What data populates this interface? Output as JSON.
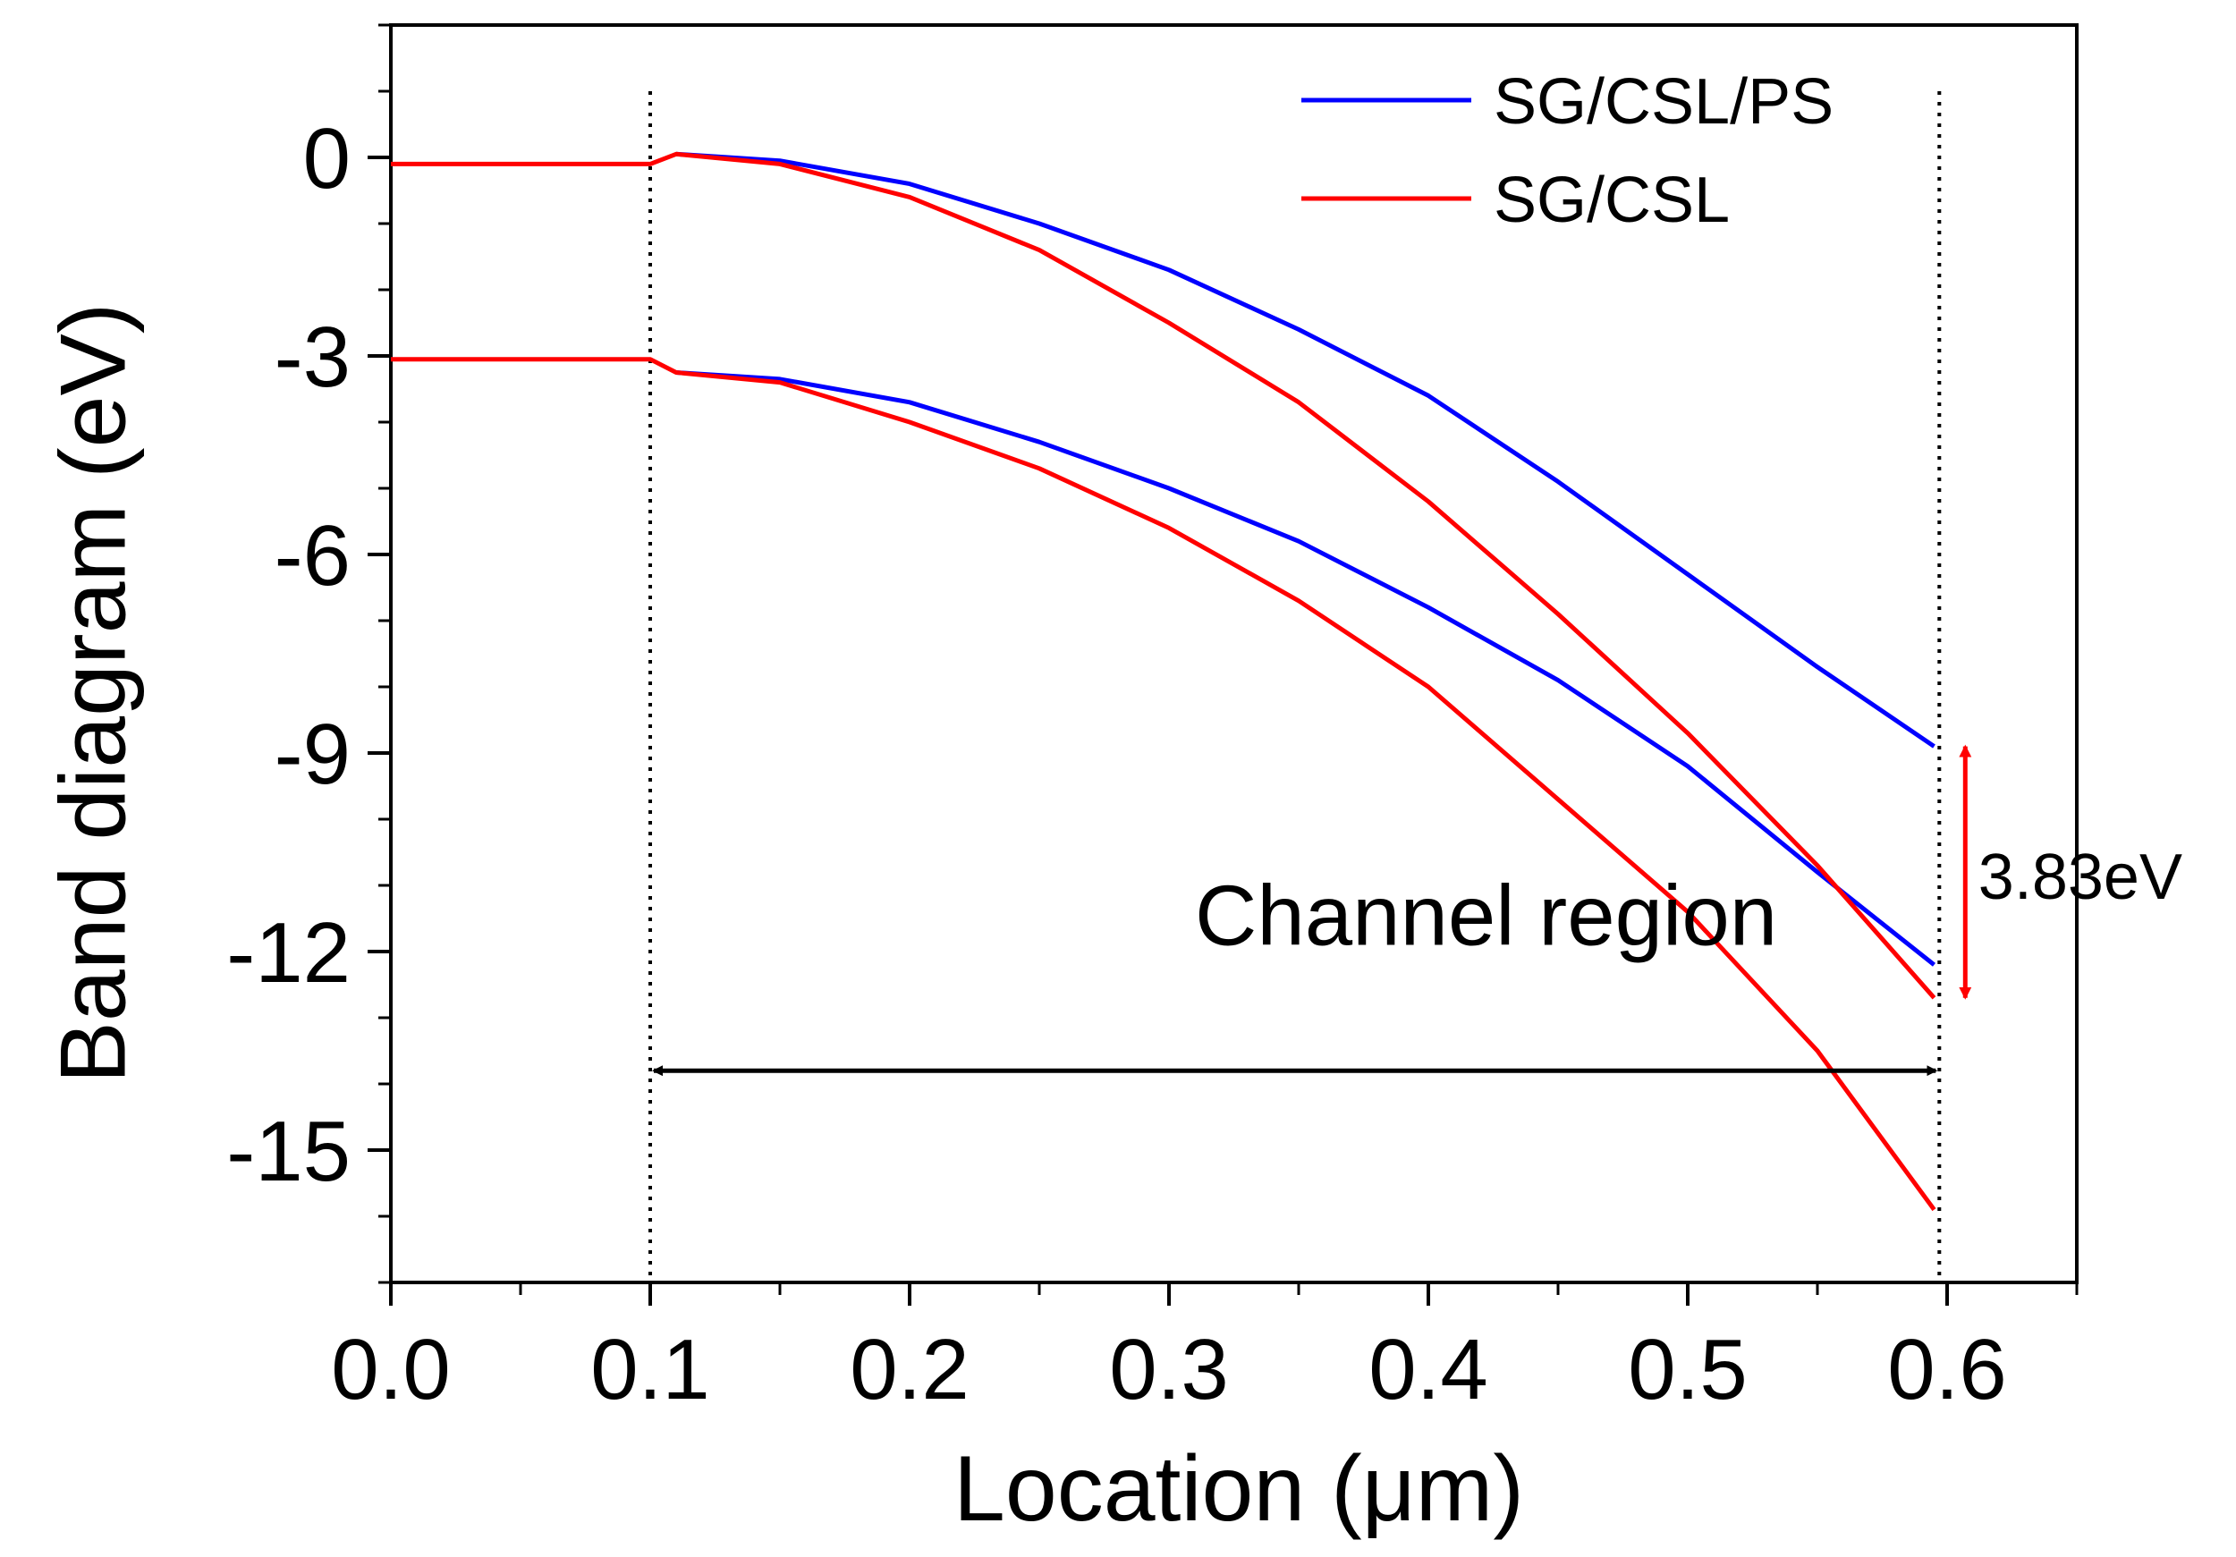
{
  "chart_data": {
    "type": "line",
    "title": "",
    "xlabel": "Location (μm)",
    "ylabel": "Band diagram (eV)",
    "xlim": [
      0.0,
      0.65
    ],
    "ylim": [
      -17.0,
      2.0
    ],
    "xticks": [
      0.0,
      0.1,
      0.2,
      0.3,
      0.4,
      0.5,
      0.6
    ],
    "xtick_labels": [
      "0.0",
      "0.1",
      "0.2",
      "0.3",
      "0.4",
      "0.5",
      "0.6"
    ],
    "yticks": [
      0,
      -3,
      -6,
      -9,
      -12,
      -15
    ],
    "ytick_labels": [
      "0",
      "-3",
      "-6",
      "-9",
      "-12",
      "-15"
    ],
    "grid": false,
    "legend_position": "top-right",
    "series": [
      {
        "name": "SG/CSL/PS",
        "group": "conduction",
        "color": "#0000ff",
        "x": [
          0.11,
          0.15,
          0.2,
          0.25,
          0.3,
          0.35,
          0.4,
          0.45,
          0.5,
          0.55,
          0.595
        ],
        "y": [
          0.05,
          -0.05,
          -0.4,
          -1.0,
          -1.7,
          -2.6,
          -3.6,
          -4.9,
          -6.3,
          -7.7,
          -8.9
        ]
      },
      {
        "name": "SG/CSL/PS",
        "group": "valence",
        "color": "#0000ff",
        "x": [
          0.11,
          0.15,
          0.2,
          0.25,
          0.3,
          0.35,
          0.4,
          0.45,
          0.5,
          0.55,
          0.595
        ],
        "y": [
          -3.25,
          -3.35,
          -3.7,
          -4.3,
          -5.0,
          -5.8,
          -6.8,
          -7.9,
          -9.2,
          -10.8,
          -12.2
        ]
      },
      {
        "name": "SG/CSL",
        "group": "conduction",
        "color": "#ff0000",
        "x": [
          0.0,
          0.1,
          0.11,
          0.15,
          0.2,
          0.25,
          0.3,
          0.35,
          0.4,
          0.45,
          0.5,
          0.55,
          0.595
        ],
        "y": [
          -0.1,
          -0.1,
          0.05,
          -0.1,
          -0.6,
          -1.4,
          -2.5,
          -3.7,
          -5.2,
          -6.9,
          -8.7,
          -10.7,
          -12.7
        ]
      },
      {
        "name": "SG/CSL",
        "group": "valence",
        "color": "#ff0000",
        "x": [
          0.0,
          0.1,
          0.11,
          0.15,
          0.2,
          0.25,
          0.3,
          0.35,
          0.4,
          0.45,
          0.5,
          0.55,
          0.595
        ],
        "y": [
          -3.05,
          -3.05,
          -3.25,
          -3.4,
          -4.0,
          -4.7,
          -5.6,
          -6.7,
          -8.0,
          -9.7,
          -11.4,
          -13.5,
          -15.9
        ]
      }
    ],
    "legend": [
      {
        "label": "SG/CSL/PS",
        "color": "#0000ff"
      },
      {
        "label": "SG/CSL",
        "color": "#ff0000"
      }
    ],
    "annotations": {
      "channel_label": "Channel region",
      "channel_start": 0.1,
      "channel_end": 0.597,
      "channel_arrow_y": -13.8,
      "channel_label_pos": {
        "x": 0.31,
        "y": -11.9
      },
      "gap_label": "3.83eV",
      "gap_color": "#ff0000",
      "gap_arrow_x": 0.607,
      "gap_arrow_top": -8.9,
      "gap_arrow_bottom": -12.7,
      "gap_label_pos": {
        "x": 0.612,
        "y": -11.2
      }
    }
  }
}
